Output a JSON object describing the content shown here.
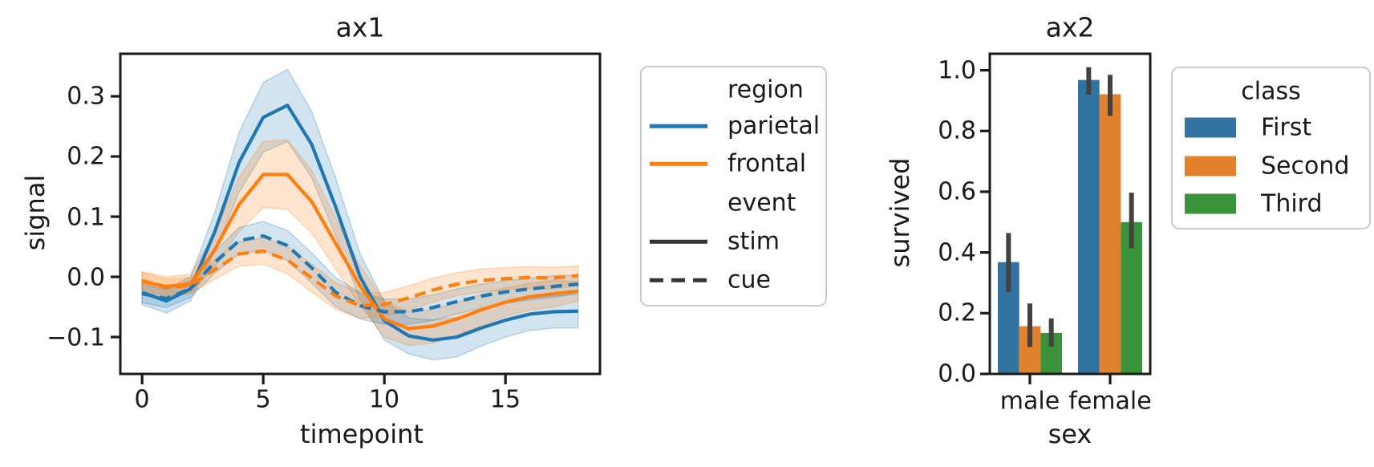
{
  "colors": {
    "line_parietal": "#1f77b4",
    "line_frontal": "#ff7f0e",
    "style_sample_gray": "#333333",
    "bar_first": "#3274a1",
    "bar_second": "#e1812c",
    "bar_third": "#3a923a",
    "error_bar": "#424242",
    "axis": "#1a1a1a",
    "legend_border": "#cccccc",
    "background": "#ffffff"
  },
  "chart_data": [
    {
      "id": "ax1",
      "type": "line",
      "title": "ax1",
      "xlabel": "timepoint",
      "ylabel": "signal",
      "grid": false,
      "xlim": [
        -0.9,
        18.9
      ],
      "ylim": [
        -0.1613,
        0.3707
      ],
      "xticks": {
        "values": [
          0,
          5,
          10,
          15
        ],
        "labels": [
          "0",
          "5",
          "10",
          "15"
        ]
      },
      "yticks": {
        "values": [
          0.3,
          0.2,
          0.1,
          0.0,
          -0.1
        ],
        "labels": [
          "0.3",
          "0.2",
          "0.1",
          "0.0",
          "−0.1"
        ]
      },
      "x": [
        0,
        1,
        2,
        3,
        4,
        5,
        6,
        7,
        8,
        9,
        10,
        11,
        12,
        13,
        14,
        15,
        16,
        17,
        18
      ],
      "series": [
        {
          "name": "parietal-stim",
          "region": "parietal",
          "event": "stim",
          "color": "#1f77b4",
          "dash": false,
          "values": [
            -0.026,
            -0.04,
            -0.02,
            0.075,
            0.19,
            0.265,
            0.285,
            0.22,
            0.115,
            0.0,
            -0.073,
            -0.098,
            -0.105,
            -0.1,
            -0.085,
            -0.072,
            -0.062,
            -0.058,
            -0.057
          ],
          "band": [
            0.02,
            0.02,
            0.02,
            0.032,
            0.05,
            0.058,
            0.06,
            0.055,
            0.048,
            0.038,
            0.032,
            0.03,
            0.033,
            0.033,
            0.03,
            0.028,
            0.027,
            0.027,
            0.028
          ]
        },
        {
          "name": "frontal-stim",
          "region": "frontal",
          "event": "stim",
          "color": "#ff7f0e",
          "dash": false,
          "values": [
            -0.008,
            -0.016,
            -0.012,
            0.045,
            0.12,
            0.17,
            0.17,
            0.125,
            0.055,
            -0.015,
            -0.07,
            -0.086,
            -0.082,
            -0.07,
            -0.055,
            -0.042,
            -0.033,
            -0.028,
            -0.024
          ],
          "band": [
            0.016,
            0.016,
            0.016,
            0.028,
            0.045,
            0.055,
            0.058,
            0.052,
            0.042,
            0.033,
            0.03,
            0.028,
            0.028,
            0.027,
            0.026,
            0.024,
            0.022,
            0.022,
            0.016
          ]
        },
        {
          "name": "parietal-cue",
          "region": "parietal",
          "event": "cue",
          "color": "#1f77b4",
          "dash": true,
          "values": [
            -0.028,
            -0.036,
            -0.02,
            0.024,
            0.06,
            0.068,
            0.052,
            0.015,
            -0.026,
            -0.048,
            -0.058,
            -0.058,
            -0.051,
            -0.041,
            -0.032,
            -0.025,
            -0.02,
            -0.016,
            -0.012
          ],
          "band": [
            0.015,
            0.015,
            0.014,
            0.018,
            0.022,
            0.024,
            0.025,
            0.025,
            0.024,
            0.022,
            0.021,
            0.021,
            0.021,
            0.021,
            0.02,
            0.019,
            0.018,
            0.018,
            0.015
          ]
        },
        {
          "name": "frontal-cue",
          "region": "frontal",
          "event": "cue",
          "color": "#ff7f0e",
          "dash": true,
          "values": [
            -0.006,
            -0.018,
            -0.014,
            0.012,
            0.038,
            0.043,
            0.028,
            -0.002,
            -0.032,
            -0.048,
            -0.046,
            -0.035,
            -0.022,
            -0.012,
            -0.006,
            -0.003,
            -0.001,
            -0.002,
            0.002
          ],
          "band": [
            0.014,
            0.014,
            0.013,
            0.016,
            0.02,
            0.022,
            0.023,
            0.023,
            0.022,
            0.021,
            0.02,
            0.02,
            0.02,
            0.019,
            0.019,
            0.018,
            0.018,
            0.018,
            0.016
          ]
        }
      ],
      "legend_rows": [
        {
          "kind": "title",
          "label": "region"
        },
        {
          "kind": "entry",
          "label": "parietal",
          "color": "#1f77b4",
          "dash": false
        },
        {
          "kind": "entry",
          "label": "frontal",
          "color": "#ff7f0e",
          "dash": false
        },
        {
          "kind": "title",
          "label": "event"
        },
        {
          "kind": "entry",
          "label": "stim",
          "color": "#333333",
          "dash": false
        },
        {
          "kind": "entry",
          "label": "cue",
          "color": "#333333",
          "dash": true
        }
      ]
    },
    {
      "id": "ax2",
      "type": "bar",
      "title": "ax2",
      "xlabel": "sex",
      "ylabel": "survived",
      "grid": false,
      "categories": [
        "male",
        "female"
      ],
      "xlim": [
        -0.5,
        1.5
      ],
      "ylim": [
        0,
        1.0543
      ],
      "yticks": {
        "values": [
          0.0,
          0.2,
          0.4,
          0.6,
          0.8,
          1.0
        ],
        "labels": [
          "0.0",
          "0.2",
          "0.4",
          "0.6",
          "0.8",
          "1.0"
        ]
      },
      "series": [
        {
          "name": "First",
          "color": "#3274a1",
          "values": [
            0.368,
            0.968
          ],
          "ci_low": [
            0.27,
            0.92
          ],
          "ci_high": [
            0.464,
            1.01
          ]
        },
        {
          "name": "Second",
          "color": "#e1812c",
          "values": [
            0.157,
            0.921
          ],
          "ci_low": [
            0.089,
            0.85
          ],
          "ci_high": [
            0.232,
            0.985
          ]
        },
        {
          "name": "Third",
          "color": "#3a923a",
          "values": [
            0.135,
            0.5
          ],
          "ci_low": [
            0.09,
            0.414
          ],
          "ci_high": [
            0.183,
            0.597
          ]
        }
      ],
      "error_color": "#424242",
      "legend": {
        "title": "class",
        "entries": [
          {
            "label": "First",
            "color": "#3274a1"
          },
          {
            "label": "Second",
            "color": "#e1812c"
          },
          {
            "label": "Third",
            "color": "#3a923a"
          }
        ]
      }
    }
  ]
}
